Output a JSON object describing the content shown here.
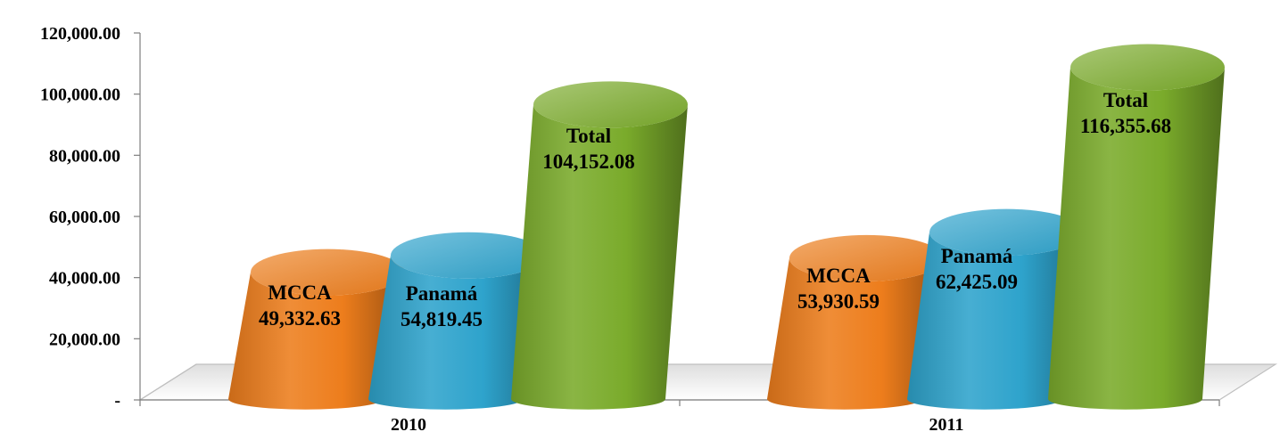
{
  "chart_data": {
    "type": "bar",
    "categories": [
      "2010",
      "2011"
    ],
    "series": [
      {
        "name": "MCCA",
        "values": [
          49332.63,
          53930.59
        ],
        "labels": [
          "49,332.63",
          "53,930.59"
        ],
        "color": "#ed7d1c"
      },
      {
        "name": "Panamá",
        "values": [
          54819.45,
          62425.09
        ],
        "labels": [
          "54,819.45",
          "62,425.09"
        ],
        "color": "#2ea3cc"
      },
      {
        "name": "Total",
        "values": [
          104152.08,
          116355.68
        ],
        "labels": [
          "104,152.08",
          "116,355.68"
        ],
        "color": "#7aab2b"
      }
    ],
    "yticks": [
      "-",
      "20,000.00",
      "40,000.00",
      "60,000.00",
      "80,000.00",
      "100,000.00",
      "120,000.00"
    ],
    "ylim": [
      0,
      120000
    ],
    "title": "",
    "xlabel": "",
    "ylabel": "",
    "grid": false,
    "legend": "none",
    "style": "3d-cylinder"
  }
}
